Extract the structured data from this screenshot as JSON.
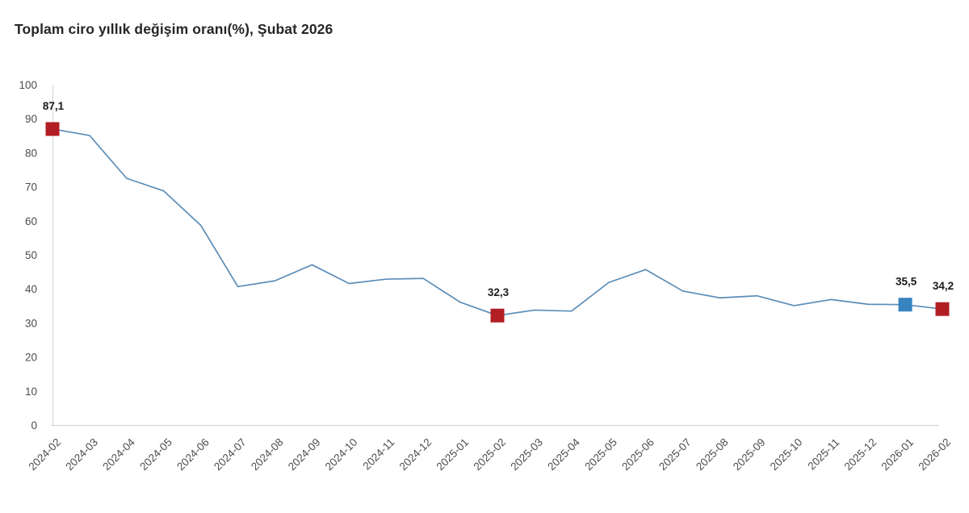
{
  "title": "Toplam ciro yıllık değişim oranı(%), Şubat 2026",
  "chart_data": {
    "type": "line",
    "title": "Toplam ciro yıllık değişim oranı(%), Şubat 2026",
    "categories": [
      "2024-02",
      "2024-03",
      "2024-04",
      "2024-05",
      "2024-06",
      "2024-07",
      "2024-08",
      "2024-09",
      "2024-10",
      "2024-11",
      "2024-12",
      "2025-01",
      "2025-02",
      "2025-03",
      "2025-04",
      "2025-05",
      "2025-06",
      "2025-07",
      "2025-08",
      "2025-09",
      "2025-10",
      "2025-11",
      "2025-12",
      "2026-01",
      "2026-02"
    ],
    "values": [
      87.1,
      85.2,
      72.6,
      68.9,
      58.8,
      40.8,
      42.5,
      47.2,
      41.7,
      43.0,
      43.2,
      36.2,
      32.3,
      33.9,
      33.6,
      42.0,
      45.8,
      39.5,
      37.5,
      38.1,
      35.2,
      37.0,
      35.6,
      35.5,
      34.2
    ],
    "xlabel": "",
    "ylabel": "",
    "ylim": [
      0,
      100
    ],
    "ytick_step": 10,
    "grid": "off",
    "legend": "none",
    "line_color": "#5B8DB8",
    "axis_color": "#D9D9D9",
    "tick_label_color": "#4D4D4D",
    "data_label_color": "#1A1A1A",
    "annotated_points": [
      {
        "category": "2024-02",
        "value": 87.1,
        "value_label": "87,1",
        "marker_color": "#B11E24"
      },
      {
        "category": "2025-02",
        "value": 32.3,
        "value_label": "32,3",
        "marker_color": "#B11E24"
      },
      {
        "category": "2026-01",
        "value": 35.5,
        "value_label": "35,5",
        "marker_color": "#3783BF"
      },
      {
        "category": "2026-02",
        "value": 34.2,
        "value_label": "34,2",
        "marker_color": "#B11E24"
      }
    ]
  }
}
